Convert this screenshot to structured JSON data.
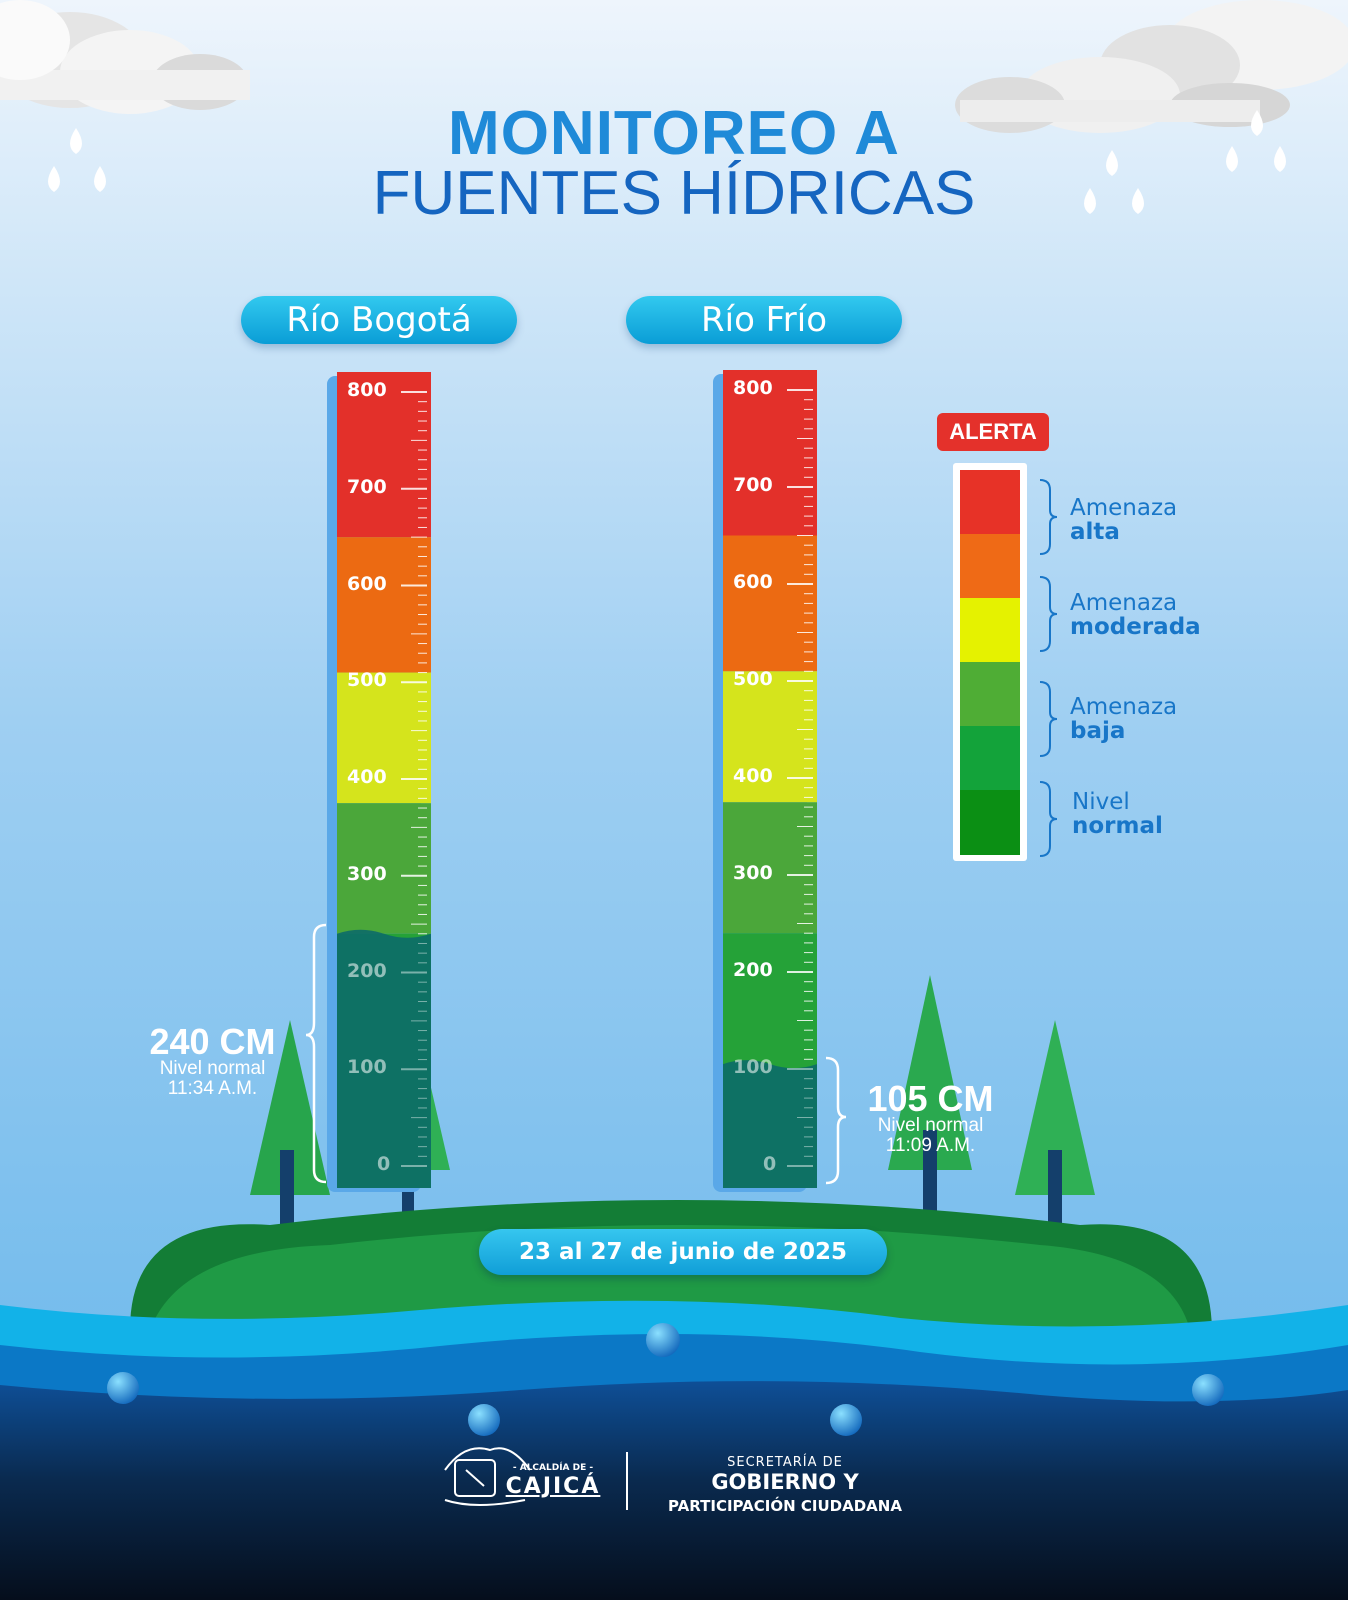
{
  "title": {
    "line1": "MONITOREO A",
    "line2": "FUENTES HÍDRICAS"
  },
  "date_range": "23 al 27 de junio de 2025",
  "scale_ticks": [
    "800",
    "700",
    "600",
    "500",
    "400",
    "300",
    "200",
    "100",
    "0"
  ],
  "gauges": [
    {
      "name": "Río Bogotá",
      "level_cm": 240,
      "reading": "240 CM",
      "status": "Nivel normal",
      "time": "11:34 A.M."
    },
    {
      "name": "Río Frío",
      "level_cm": 105,
      "reading": "105 CM",
      "status": "Nivel normal",
      "time": "11:09 A.M."
    }
  ],
  "legend": {
    "badge": "ALERTA",
    "colors": [
      "#e73227",
      "#ef6a16",
      "#e5f200",
      "#4fad35",
      "#13a33a",
      "#0b8f14"
    ],
    "items": [
      {
        "line1": "Amenaza",
        "line2": "alta"
      },
      {
        "line1": "Amenaza",
        "line2": "moderada"
      },
      {
        "line1": "Amenaza",
        "line2": "baja"
      },
      {
        "line1": "Nivel",
        "line2": "normal"
      }
    ]
  },
  "zone_colors": {
    "high": "#e3302a",
    "orange": "#ec6a12",
    "yellow": "#d5e41c",
    "green": "#4ba73a",
    "green2": "#25a238"
  },
  "footer": {
    "cajica_small": "- ALCALDÍA DE -",
    "cajica": "CAJICÁ",
    "sec_small": "SECRETARÍA DE",
    "sec_line1": "GOBIERNO Y",
    "sec_line2": "PARTICIPACIÓN CIUDADANA"
  }
}
